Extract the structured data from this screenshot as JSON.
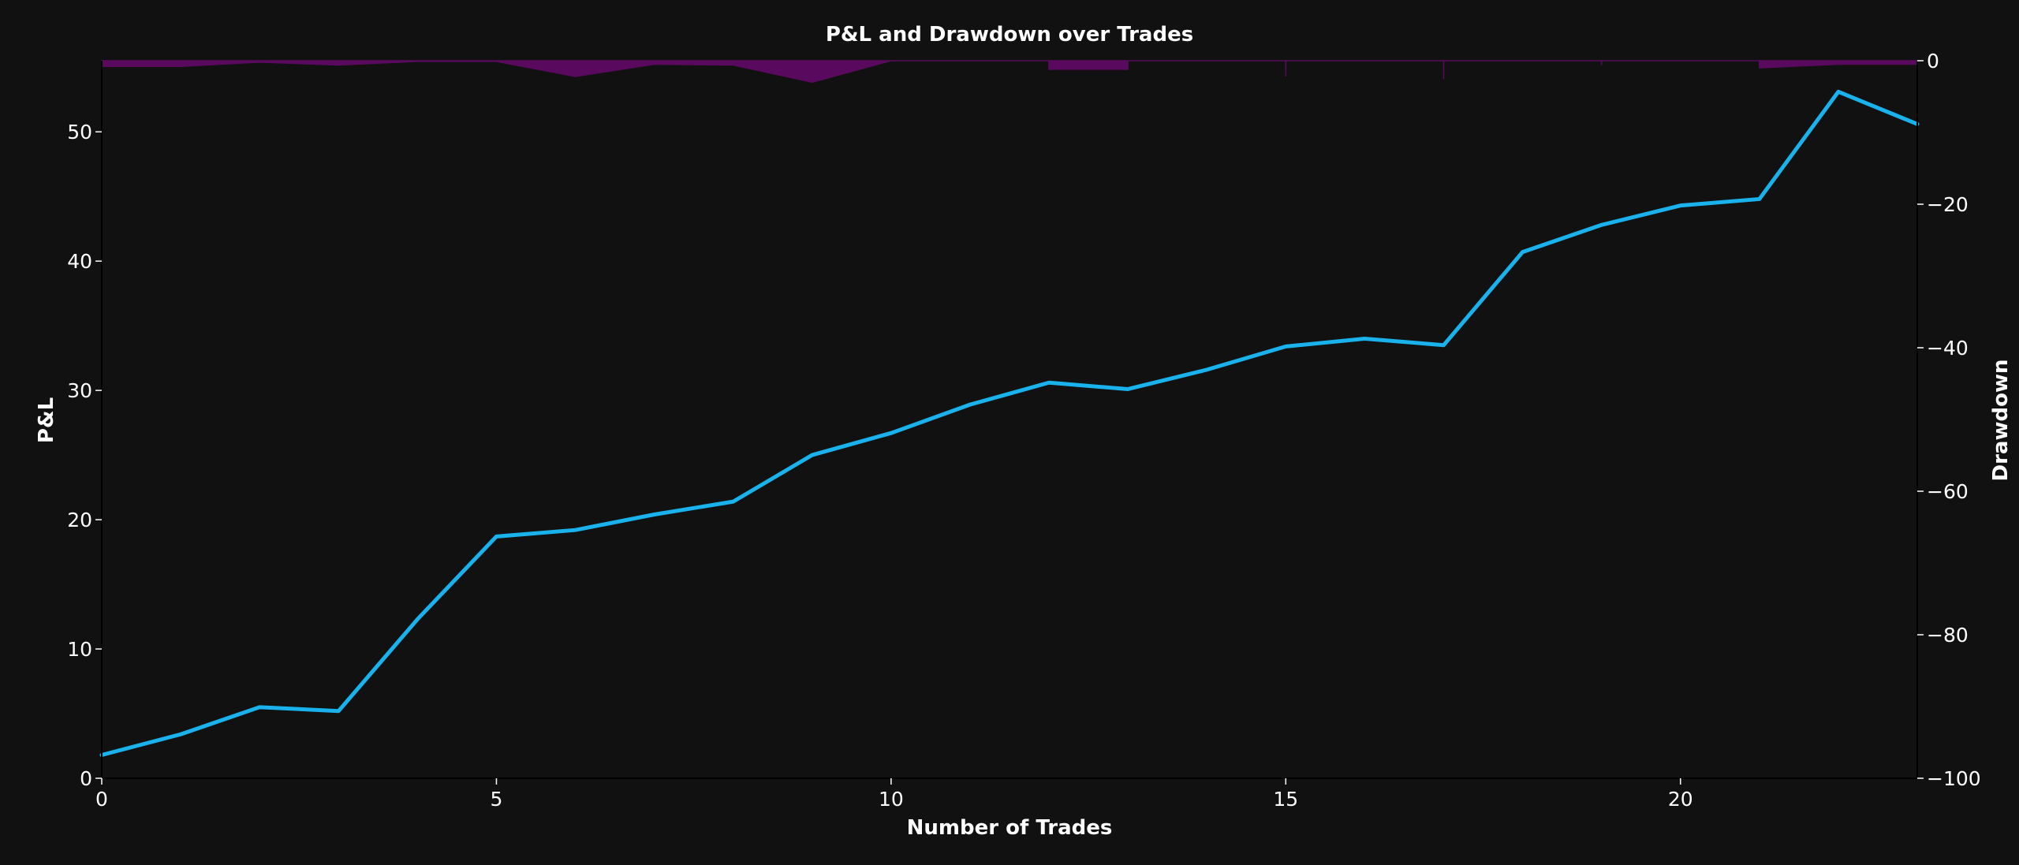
{
  "chart_data": {
    "type": "line",
    "title": "P&L and Drawdown over Trades",
    "xlabel": "Number of Trades",
    "ylabel": "P&L",
    "y2label": "Drawdown",
    "xlim": [
      0,
      23
    ],
    "ylim": [
      0,
      55.5
    ],
    "y2lim": [
      -100,
      0
    ],
    "xticks": [
      0,
      5,
      10,
      15,
      20
    ],
    "yticks": [
      0,
      10,
      20,
      30,
      40,
      50
    ],
    "y2ticks": [
      0,
      -20,
      -40,
      -60,
      -80,
      -100
    ],
    "grid": false,
    "legend": "none",
    "series": [
      {
        "axis": "left",
        "style": "line",
        "color": "#1ab2ec",
        "x": [
          0,
          1,
          2,
          3,
          4,
          5,
          6,
          7,
          8,
          9,
          10,
          11,
          12,
          13,
          14,
          15,
          16,
          17,
          18,
          19,
          20,
          21,
          22,
          23
        ],
        "values": [
          1.8,
          3.4,
          5.5,
          5.2,
          12.3,
          18.7,
          19.2,
          20.4,
          21.4,
          25.0,
          26.7,
          28.9,
          30.6,
          30.1,
          31.6,
          33.4,
          34.0,
          33.5,
          40.7,
          42.8,
          44.3,
          44.8,
          53.1,
          50.6
        ]
      },
      {
        "axis": "right",
        "style": "area",
        "color": "#5a0a5e",
        "x": [
          0,
          1,
          2,
          3,
          4,
          5,
          6,
          7,
          8,
          9,
          10,
          11,
          11.999,
          12,
          13,
          13.001,
          14,
          14.999,
          15,
          15.001,
          16,
          16.999,
          17,
          17.001,
          18,
          18.999,
          19,
          19.001,
          20,
          20.999,
          21,
          22,
          23
        ],
        "values": [
          -0.8,
          -0.8,
          -0.2,
          -0.6,
          -0.1,
          -0.1,
          -2.2,
          -0.5,
          -0.6,
          -3.0,
          0,
          0,
          0,
          -1.2,
          -1.2,
          0,
          0,
          0,
          -2.2,
          0,
          0,
          0,
          -2.6,
          0,
          0,
          0,
          -0.6,
          0,
          0,
          0,
          -1.0,
          -0.5,
          -0.5
        ]
      }
    ]
  }
}
